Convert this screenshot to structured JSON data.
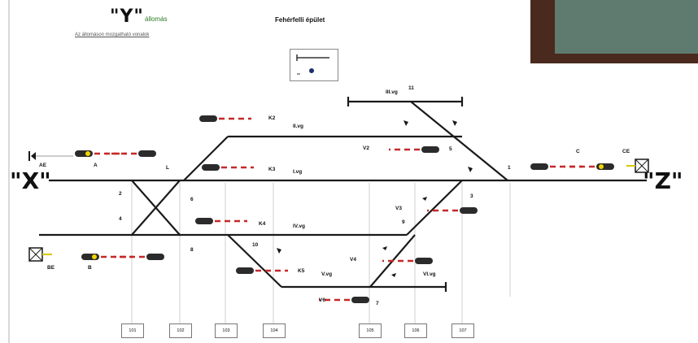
{
  "title": {
    "main": "\"Y\"",
    "suffix": "állomás",
    "subtitle": "Az állomáson mozgatható vonalok"
  },
  "heading": "Fehérfelli épület",
  "stations": {
    "x": "\"X\"",
    "z": "\"Z\""
  },
  "tracks": {
    "t1": "I.vg",
    "t2": "II.vg",
    "t3": "III.vg",
    "t4": "IV.vg",
    "t5": "V.vg",
    "t6": "VI.vg"
  },
  "switches": {
    "sw1": "1",
    "sw2": "2",
    "sw3": "3",
    "sw4": "4",
    "sw5": "5",
    "sw6": "6",
    "sw7": "7",
    "sw8": "8",
    "sw9": "9",
    "sw10": "10",
    "sw11": "11"
  },
  "signals": {
    "ae": "AE",
    "a": "A",
    "ce": "CE",
    "c": "C",
    "be": "BE",
    "b": "B",
    "k2": "K2",
    "k3": "K3",
    "k4": "K4",
    "k5": "K5",
    "v2": "V2",
    "v3": "V3",
    "v4": "V4",
    "v6": "V6",
    "l": "L"
  },
  "boxes": [
    "101",
    "102",
    "103",
    "104",
    "105",
    "106",
    "107"
  ],
  "colors": {
    "red": "#c62828",
    "yellow": "#f2d300",
    "signal": "#2b2b2b",
    "track": "#1a1a1a"
  }
}
